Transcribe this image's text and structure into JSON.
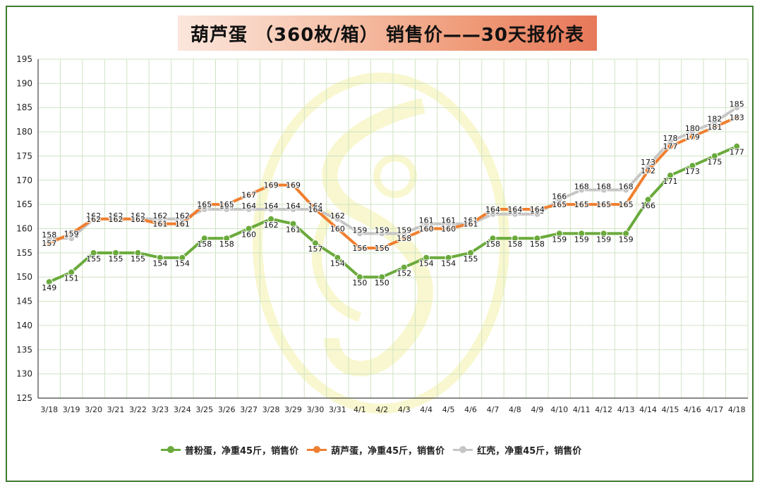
{
  "title": "葫芦蛋 （360枚/箱） 销售价——30天报价表",
  "colors": {
    "green": "#6aaa3c",
    "orange": "#ef7f30",
    "gray": "#c6c6c6",
    "border": "#3f7a2f"
  },
  "chart_data": {
    "type": "line",
    "title": "葫芦蛋 （360枚/箱） 销售价——30天报价表",
    "xlabel": "",
    "ylabel": "",
    "ylim": [
      125,
      195
    ],
    "yticks": [
      125,
      130,
      135,
      140,
      145,
      150,
      155,
      160,
      165,
      170,
      175,
      180,
      185,
      190,
      195
    ],
    "grid": true,
    "legend_position": "bottom",
    "categories": [
      "3/18",
      "3/19",
      "3/20",
      "3/21",
      "3/22",
      "3/23",
      "3/24",
      "3/25",
      "3/26",
      "3/27",
      "3/28",
      "3/29",
      "3/30",
      "3/31",
      "4/1",
      "4/2",
      "4/3",
      "4/4",
      "4/5",
      "4/6",
      "4/7",
      "4/8",
      "4/9",
      "4/10",
      "4/11",
      "4/12",
      "4/13",
      "4/14",
      "4/15",
      "4/16",
      "4/17",
      "4/18"
    ],
    "series": [
      {
        "name": "普粉蛋，净重45斤，销售价",
        "color": "#6aaa3c",
        "values": [
          149,
          151,
          155,
          155,
          155,
          154,
          154,
          158,
          158,
          160,
          162,
          161,
          157,
          154,
          150,
          150,
          152,
          154,
          154,
          155,
          158,
          158,
          158,
          159,
          159,
          159,
          159,
          166,
          171,
          173,
          175,
          177
        ]
      },
      {
        "name": "葫芦蛋，净重45斤，销售价",
        "color": "#ef7f30",
        "values": [
          157,
          159,
          162,
          162,
          162,
          161,
          161,
          165,
          165,
          167,
          169,
          169,
          164,
          160,
          156,
          156,
          158,
          160,
          160,
          161,
          164,
          164,
          164,
          165,
          165,
          165,
          165,
          172,
          177,
          179,
          181,
          183
        ]
      },
      {
        "name": "红壳，净重45斤，销售价",
        "color": "#c6c6c6",
        "values": [
          158,
          158,
          162,
          162,
          162,
          162,
          162,
          164,
          164,
          164,
          164,
          164,
          164,
          162,
          159,
          159,
          159,
          161,
          161,
          161,
          163,
          163,
          163,
          166,
          168,
          168,
          168,
          173,
          178,
          180,
          182,
          185
        ]
      }
    ]
  }
}
